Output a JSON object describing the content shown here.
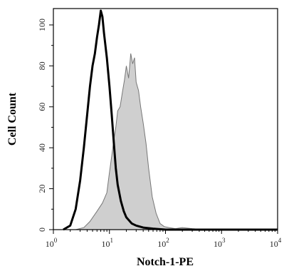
{
  "chart_data": {
    "type": "area",
    "xlabel": "Notch-1-PE",
    "ylabel": "Cell Count",
    "x_scale": "log",
    "xlim": [
      1,
      10000
    ],
    "ylim": [
      0,
      108
    ],
    "x_ticks": [
      {
        "value": 1,
        "base": "10",
        "exp": "0"
      },
      {
        "value": 10,
        "base": "10",
        "exp": "1"
      },
      {
        "value": 100,
        "base": "10",
        "exp": "2"
      },
      {
        "value": 1000,
        "base": "10",
        "exp": "3"
      },
      {
        "value": 10000,
        "base": "10",
        "exp": "4"
      }
    ],
    "y_ticks": [
      "0",
      "20",
      "40",
      "60",
      "80",
      "100"
    ],
    "grid": false,
    "series": [
      {
        "style": "filled gray histogram",
        "fill": "#cfcfcf",
        "stroke": "#777777",
        "x": [
          2.5,
          3.5,
          4.5,
          6,
          7.5,
          9,
          10,
          11,
          12,
          13,
          14,
          15.5,
          17,
          18.5,
          20,
          22,
          24,
          26,
          28,
          30,
          33,
          36,
          40,
          45,
          50,
          58,
          68,
          80,
          95,
          115,
          150,
          200,
          300,
          500
        ],
        "y": [
          0,
          1,
          4,
          9,
          13,
          18,
          28,
          36,
          44,
          50,
          58,
          60,
          67,
          73,
          80,
          74,
          86,
          81,
          84,
          72,
          68,
          60,
          52,
          42,
          30,
          16,
          8,
          3,
          1.5,
          1,
          0.5,
          1,
          0.5,
          0
        ]
      },
      {
        "style": "thick black histogram",
        "stroke": "#000000",
        "x": [
          1.5,
          2,
          2.5,
          3,
          3.5,
          4,
          4.5,
          5,
          5.5,
          6,
          6.5,
          7,
          7.5,
          8,
          9,
          10,
          11,
          12,
          13,
          14,
          16,
          18,
          20,
          25,
          30,
          40,
          60,
          100,
          1000,
          10000
        ],
        "y": [
          0,
          2,
          10,
          24,
          40,
          56,
          70,
          80,
          86,
          94,
          100,
          107,
          104,
          96,
          84,
          70,
          56,
          42,
          30,
          22,
          14,
          9,
          6,
          3,
          2,
          1,
          0.5,
          0,
          0,
          0
        ]
      }
    ]
  }
}
